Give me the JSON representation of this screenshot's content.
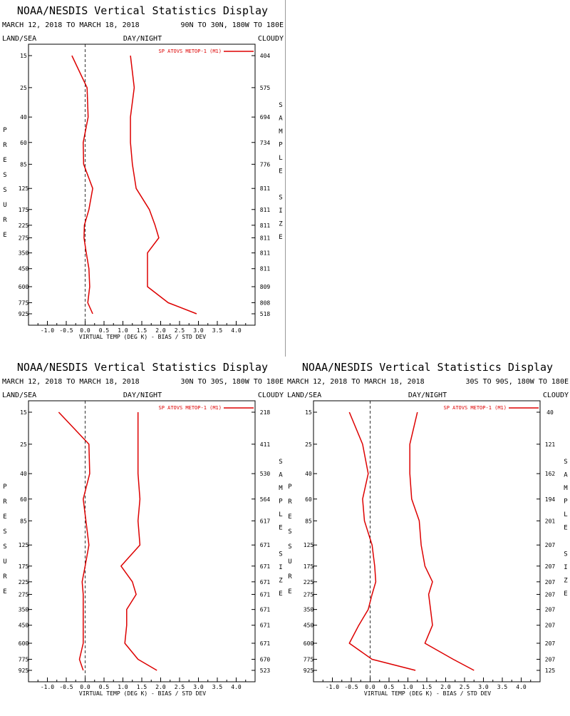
{
  "colors": {
    "series": "#dd0000",
    "zero_line": "#000000"
  },
  "chart_data": [
    {
      "type": "line",
      "title": "NOAA/NESDIS Vertical Statistics Display",
      "date_range": "MARCH 12, 2018 TO MARCH 18, 2018",
      "region": "90N TO 30N, 180W TO 180E",
      "header_left": "LAND/SEA",
      "header_center": "DAY/NIGHT",
      "header_right": "CLOUDY",
      "legend": "SP ATOVS METOP-1 (M1)",
      "legend_position": "top-right",
      "ylabel_left": "PRESSURE",
      "ylabel_right": "SAMPLE SIZE",
      "xlabel": "VIRTUAL TEMP (DEG K) - BIAS / STD DEV",
      "xlim": [
        -1.5,
        4.5
      ],
      "x_ticks": [
        "-1.0",
        "-0.5",
        "0.0",
        "0.5",
        "1.0",
        "1.5",
        "2.0",
        "2.5",
        "3.0",
        "3.5",
        "4.0"
      ],
      "pressure_levels": [
        "15",
        "25",
        "40",
        "60",
        "85",
        "125",
        "175",
        "225",
        "275",
        "350",
        "450",
        "600",
        "775",
        "925"
      ],
      "sample_size": [
        "404",
        "575",
        "694",
        "734",
        "776",
        "811",
        "811",
        "811",
        "811",
        "811",
        "811",
        "809",
        "808",
        "518"
      ],
      "series": [
        {
          "stat": "bias",
          "values": [
            -0.35,
            0.05,
            0.08,
            -0.05,
            -0.04,
            0.2,
            0.1,
            -0.02,
            -0.03,
            0.03,
            0.1,
            0.12,
            0.07,
            0.2
          ]
        },
        {
          "stat": "std_dev",
          "values": [
            1.2,
            1.3,
            1.2,
            1.2,
            1.25,
            1.35,
            1.7,
            1.85,
            1.95,
            1.65,
            1.65,
            1.65,
            2.2,
            2.95
          ]
        }
      ]
    },
    {
      "type": "line",
      "title": "NOAA/NESDIS Vertical Statistics Display",
      "date_range": "MARCH 12, 2018 TO MARCH 18, 2018",
      "region": "30N TO 30S, 180W TO 180E",
      "header_left": "LAND/SEA",
      "header_center": "DAY/NIGHT",
      "header_right": "CLOUDY",
      "legend": "SP ATOVS METOP-1 (M1)",
      "legend_position": "top-right",
      "ylabel_left": "PRESSURE",
      "ylabel_right": "SAMPLE SIZE",
      "xlabel": "VIRTUAL TEMP (DEG K) - BIAS / STD DEV",
      "xlim": [
        -1.5,
        4.5
      ],
      "x_ticks": [
        "-1.0",
        "-0.5",
        "0.0",
        "0.5",
        "1.0",
        "1.5",
        "2.0",
        "2.5",
        "3.0",
        "3.5",
        "4.0"
      ],
      "pressure_levels": [
        "15",
        "25",
        "40",
        "60",
        "85",
        "125",
        "175",
        "225",
        "275",
        "350",
        "450",
        "600",
        "775",
        "925"
      ],
      "sample_size": [
        "218",
        "411",
        "530",
        "564",
        "617",
        "671",
        "671",
        "671",
        "671",
        "671",
        "671",
        "671",
        "670",
        "523"
      ],
      "series": [
        {
          "stat": "bias",
          "values": [
            -0.7,
            0.1,
            0.12,
            -0.05,
            0.02,
            0.1,
            0.0,
            -0.08,
            -0.05,
            -0.05,
            -0.05,
            -0.05,
            -0.15,
            -0.05
          ]
        },
        {
          "stat": "std_dev",
          "values": [
            1.4,
            1.4,
            1.4,
            1.45,
            1.4,
            1.45,
            0.95,
            1.25,
            1.35,
            1.1,
            1.1,
            1.05,
            1.4,
            1.9
          ]
        }
      ]
    },
    {
      "type": "line",
      "title": "NOAA/NESDIS Vertical Statistics Display",
      "date_range": "MARCH 12, 2018 TO MARCH 18, 2018",
      "region": "30S TO 90S, 180W TO 180E",
      "header_left": "LAND/SEA",
      "header_center": "DAY/NIGHT",
      "header_right": "CLOUDY",
      "legend": "SP ATOVS METOP-1 (M1)",
      "legend_position": "top-right",
      "ylabel_left": "PRESSURE",
      "ylabel_right": "SAMPLE SIZE",
      "xlabel": "VIRTUAL TEMP (DEG K) - BIAS / STD DEV",
      "xlim": [
        -1.5,
        4.5
      ],
      "x_ticks": [
        "-1.0",
        "-0.5",
        "0.0",
        "0.5",
        "1.0",
        "1.5",
        "2.0",
        "2.5",
        "3.0",
        "3.5",
        "4.0"
      ],
      "pressure_levels": [
        "15",
        "25",
        "40",
        "60",
        "85",
        "125",
        "175",
        "225",
        "275",
        "350",
        "450",
        "600",
        "775",
        "925"
      ],
      "sample_size": [
        "40",
        "121",
        "162",
        "194",
        "201",
        "207",
        "207",
        "207",
        "207",
        "207",
        "207",
        "207",
        "207",
        "125"
      ],
      "series": [
        {
          "stat": "bias",
          "values": [
            -0.55,
            -0.2,
            -0.05,
            -0.2,
            -0.15,
            0.05,
            0.12,
            0.15,
            0.05,
            -0.05,
            -0.3,
            -0.55,
            0.05,
            1.2
          ]
        },
        {
          "stat": "std_dev",
          "values": [
            1.25,
            1.05,
            1.05,
            1.1,
            1.3,
            1.35,
            1.45,
            1.65,
            1.55,
            1.6,
            1.65,
            1.45,
            2.2,
            2.75
          ]
        }
      ]
    }
  ]
}
